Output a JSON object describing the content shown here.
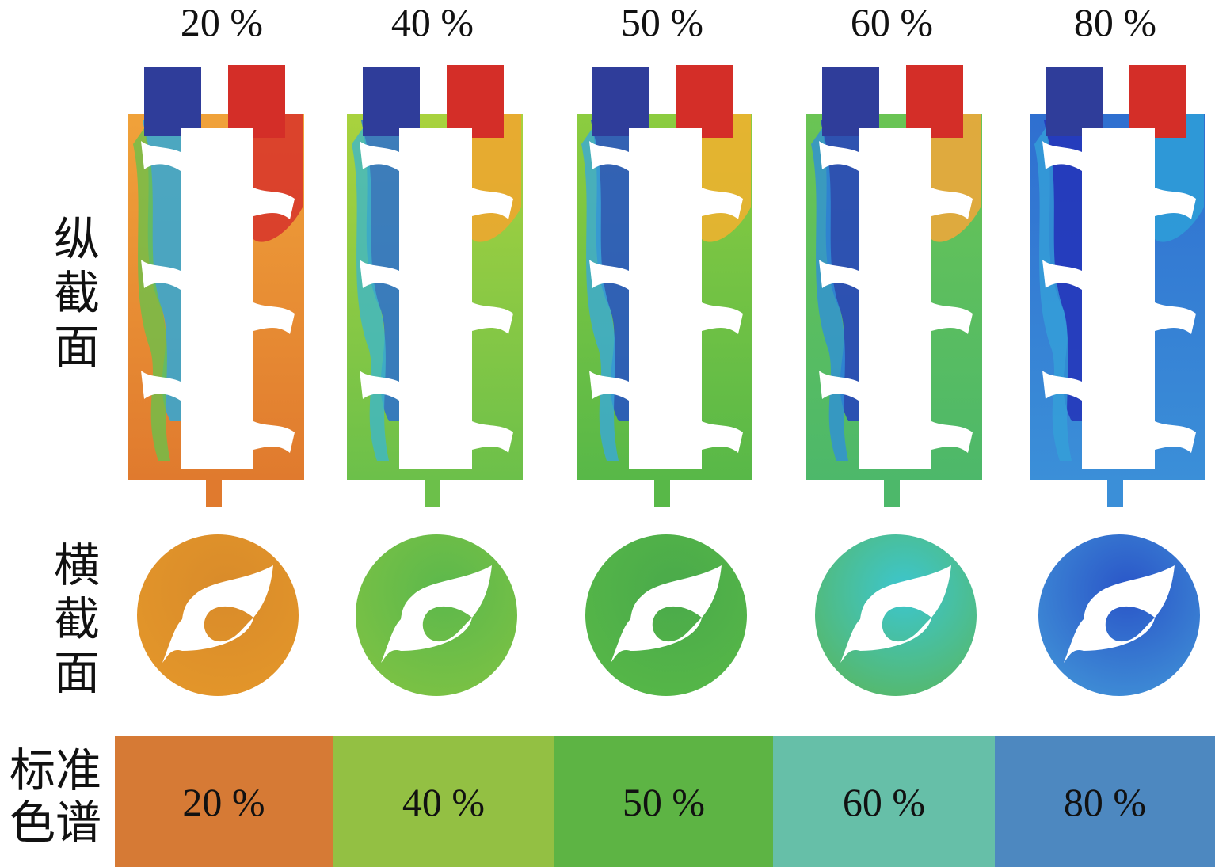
{
  "columns": [
    {
      "title": "20 %",
      "colors": {
        "bg": "#e07a2e",
        "bg2": "#f0a23a",
        "edge": "#d7322a",
        "wake1": "#2fa8d8",
        "wake2": "#6cc04a",
        "cross": "#e3962a",
        "cross2": "#d98b2a"
      }
    },
    {
      "title": "40 %",
      "colors": {
        "bg": "#6cc04a",
        "bg2": "#a9d23e",
        "edge": "#f2a52e",
        "wake1": "#2b6fd0",
        "wake2": "#3fb7c8",
        "cross": "#7cc244",
        "cross2": "#5cb84c"
      }
    },
    {
      "title": "50 %",
      "colors": {
        "bg": "#58b848",
        "bg2": "#8ccc40",
        "edge": "#f3b02e",
        "wake1": "#2450c8",
        "wake2": "#3aa9d8",
        "cross": "#56b748",
        "cross2": "#4aaa4a"
      }
    },
    {
      "title": "60 %",
      "colors": {
        "bg": "#4db86a",
        "bg2": "#6ac454",
        "edge": "#f5a63a",
        "wake1": "#243ec0",
        "wake2": "#3090d8",
        "cross": "#56b86a",
        "cross2": "#3cc6cf"
      }
    },
    {
      "title": "80 %",
      "colors": {
        "bg": "#3b8fd8",
        "bg2": "#2f6fd0",
        "edge": "#2e9fd8",
        "wake1": "#2332b8",
        "wake2": "#34a0d8",
        "cross": "#3f8ed6",
        "cross2": "#2a55c8"
      }
    }
  ],
  "row_labels": {
    "longitudinal": "纵\n截\n面",
    "transverse": "横\n截\n面"
  },
  "reference": {
    "label": "标准\n色谱",
    "swatches": [
      {
        "text": "20 %",
        "color": "#d67a35"
      },
      {
        "text": "40 %",
        "color": "#93c043"
      },
      {
        "text": "50 %",
        "color": "#5db444"
      },
      {
        "text": "60 %",
        "color": "#66bfa8"
      },
      {
        "text": "80 %",
        "color": "#4d88c0"
      }
    ]
  },
  "inlet_colors": {
    "cold": "#2f3d9a",
    "hot": "#d42e28"
  }
}
